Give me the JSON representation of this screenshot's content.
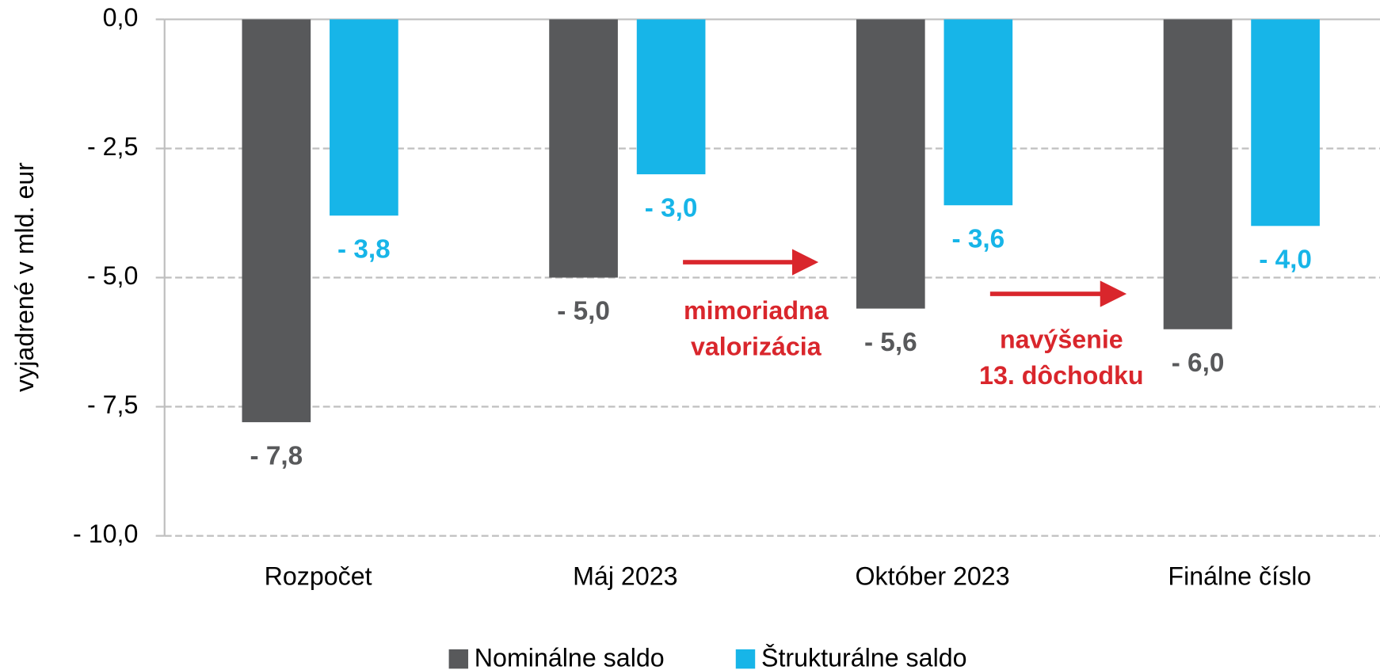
{
  "chart_data": {
    "type": "bar",
    "y_label": "vyjadrené v mld. eur",
    "categories": [
      "Rozpočet",
      "Máj 2023",
      "Október 2023",
      "Finálne číslo"
    ],
    "series": [
      {
        "name": "Nominálne saldo",
        "color": "#58595b",
        "values": [
          -7.8,
          -5.0,
          -5.6,
          -6.0
        ],
        "value_labels": [
          "- 7,8",
          "- 5,0",
          "- 5,6",
          "- 6,0"
        ]
      },
      {
        "name": "Štrukturálne saldo",
        "color": "#17b5e8",
        "values": [
          -3.8,
          -3.0,
          -3.6,
          -4.0
        ],
        "value_labels": [
          "- 3,8",
          "- 3,0",
          "- 3,6",
          "- 4,0"
        ]
      }
    ],
    "ylim": [
      -10,
      0
    ],
    "yticks": [
      {
        "value": 0,
        "label": "0,0"
      },
      {
        "value": -2.5,
        "label": "- 2,5"
      },
      {
        "value": -5,
        "label": "- 5,0"
      },
      {
        "value": -7.5,
        "label": "- 7,5"
      },
      {
        "value": -10,
        "label": "- 10,0"
      }
    ],
    "grid": true,
    "legend": "bottom",
    "annotations": [
      {
        "lines": [
          "mimoriadna",
          "valorizácia"
        ]
      },
      {
        "lines": [
          "navýšenie",
          "13. dôchodku"
        ]
      }
    ]
  }
}
